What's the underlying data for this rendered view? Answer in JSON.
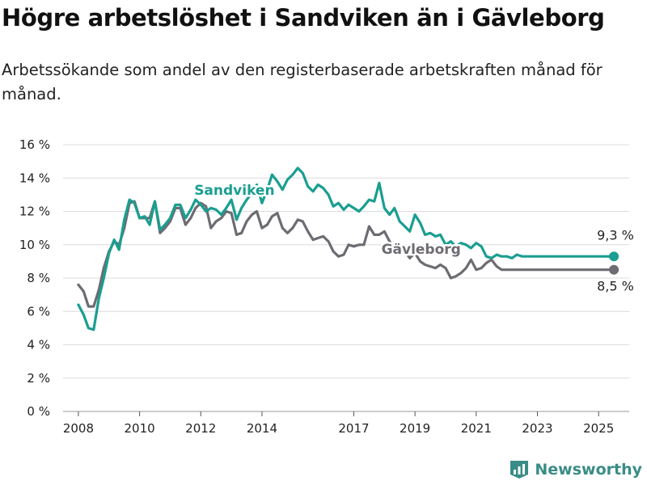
{
  "title": "Högre arbetslöshet i Sandviken än i Gävleborg",
  "subtitle": "Arbetssökande som andel av den registerbaserade arbetskraften månad för månad.",
  "brand": {
    "name": "Newsworthy",
    "icon": "newsworthy-logo-icon",
    "color": "#3a8c86"
  },
  "chart_data": {
    "type": "line",
    "x_unit": "decimal_year",
    "xlim": [
      2007.5,
      2026.0
    ],
    "ylim": [
      0,
      16
    ],
    "ytick_step": 2,
    "y_unit_suffix": " %",
    "x_tick_labels": [
      "2008",
      "2010",
      "2012",
      "2014",
      "2017",
      "2019",
      "2021",
      "2023",
      "2025"
    ],
    "x_tick_values": [
      2008,
      2010,
      2012,
      2014,
      2017,
      2019,
      2021,
      2023,
      2025
    ],
    "grid": true,
    "series": [
      {
        "name": "Sandviken",
        "color": "#1a9e91",
        "end_label": "9,3 %",
        "x": [
          2008.0,
          2008.17,
          2008.33,
          2008.5,
          2008.67,
          2008.83,
          2009.0,
          2009.17,
          2009.33,
          2009.5,
          2009.67,
          2009.83,
          2010.0,
          2010.17,
          2010.33,
          2010.5,
          2010.67,
          2010.83,
          2011.0,
          2011.17,
          2011.33,
          2011.5,
          2011.67,
          2011.83,
          2012.0,
          2012.17,
          2012.33,
          2012.5,
          2012.67,
          2012.83,
          2013.0,
          2013.17,
          2013.33,
          2013.5,
          2013.67,
          2013.83,
          2014.0,
          2014.17,
          2014.33,
          2014.5,
          2014.67,
          2014.83,
          2015.0,
          2015.17,
          2015.33,
          2015.5,
          2015.67,
          2015.83,
          2016.0,
          2016.17,
          2016.33,
          2016.5,
          2016.67,
          2016.83,
          2017.0,
          2017.17,
          2017.33,
          2017.5,
          2017.67,
          2017.83,
          2018.0,
          2018.17,
          2018.33,
          2018.5,
          2018.67,
          2018.83,
          2019.0,
          2019.17,
          2019.33,
          2019.5,
          2019.67,
          2019.83,
          2020.0,
          2020.17,
          2020.33,
          2020.5,
          2020.67,
          2020.83,
          2021.0,
          2021.17,
          2021.33,
          2021.5,
          2021.67,
          2021.83,
          2022.0,
          2022.17,
          2022.33,
          2022.5,
          2022.67,
          2022.83,
          2023.0,
          2023.17,
          2023.33,
          2023.5,
          2023.67,
          2023.83,
          2024.0,
          2024.17,
          2024.33,
          2024.5,
          2024.67,
          2024.83,
          2025.0,
          2025.17,
          2025.33,
          2025.5
        ],
        "values": [
          6.4,
          5.8,
          5.0,
          4.9,
          6.8,
          8.0,
          9.5,
          10.3,
          9.7,
          11.5,
          12.7,
          12.5,
          11.6,
          11.7,
          11.2,
          12.6,
          10.9,
          11.2,
          11.6,
          12.4,
          12.4,
          11.6,
          12.1,
          12.7,
          12.4,
          12.0,
          12.2,
          12.1,
          11.8,
          12.2,
          12.7,
          11.5,
          12.2,
          12.7,
          13.1,
          13.6,
          12.5,
          13.3,
          14.2,
          13.8,
          13.3,
          13.9,
          14.2,
          14.6,
          14.3,
          13.5,
          13.2,
          13.6,
          13.4,
          13.0,
          12.3,
          12.5,
          12.1,
          12.4,
          12.2,
          12.0,
          12.3,
          12.7,
          12.6,
          13.7,
          12.2,
          11.8,
          12.2,
          11.4,
          11.1,
          10.8,
          11.8,
          11.3,
          10.6,
          10.7,
          10.5,
          10.6,
          10.0,
          10.2,
          9.9,
          10.1,
          10.0,
          9.8,
          10.1,
          9.9,
          9.3,
          9.2,
          9.4,
          9.3,
          9.3,
          9.2,
          9.4,
          9.3,
          9.3,
          9.3,
          9.3,
          9.3,
          9.3,
          9.3,
          9.3,
          9.3,
          9.3,
          9.3,
          9.3,
          9.3,
          9.3,
          9.3,
          9.3,
          9.3,
          9.3,
          9.3
        ]
      },
      {
        "name": "Gävleborg",
        "color": "#6e6b72",
        "end_label": "8,5 %",
        "x": [
          2008.0,
          2008.17,
          2008.33,
          2008.5,
          2008.67,
          2008.83,
          2009.0,
          2009.17,
          2009.33,
          2009.5,
          2009.67,
          2009.83,
          2010.0,
          2010.17,
          2010.33,
          2010.5,
          2010.67,
          2010.83,
          2011.0,
          2011.17,
          2011.33,
          2011.5,
          2011.67,
          2011.83,
          2012.0,
          2012.17,
          2012.33,
          2012.5,
          2012.67,
          2012.83,
          2013.0,
          2013.17,
          2013.33,
          2013.5,
          2013.67,
          2013.83,
          2014.0,
          2014.17,
          2014.33,
          2014.5,
          2014.67,
          2014.83,
          2015.0,
          2015.17,
          2015.33,
          2015.5,
          2015.67,
          2015.83,
          2016.0,
          2016.17,
          2016.33,
          2016.5,
          2016.67,
          2016.83,
          2017.0,
          2017.17,
          2017.33,
          2017.5,
          2017.67,
          2017.83,
          2018.0,
          2018.17,
          2018.33,
          2018.5,
          2018.67,
          2018.83,
          2019.0,
          2019.17,
          2019.33,
          2019.5,
          2019.67,
          2019.83,
          2020.0,
          2020.17,
          2020.33,
          2020.5,
          2020.67,
          2020.83,
          2021.0,
          2021.17,
          2021.33,
          2021.5,
          2021.67,
          2021.83,
          2022.0,
          2022.17,
          2022.33,
          2022.5,
          2022.67,
          2022.83,
          2023.0,
          2023.17,
          2023.33,
          2023.5,
          2023.67,
          2023.83,
          2024.0,
          2024.17,
          2024.33,
          2024.5,
          2024.67,
          2024.83,
          2025.0,
          2025.17,
          2025.33,
          2025.5
        ],
        "values": [
          7.6,
          7.2,
          6.3,
          6.3,
          7.3,
          8.6,
          9.6,
          10.2,
          10.0,
          11.0,
          12.5,
          12.6,
          11.6,
          11.6,
          11.6,
          12.6,
          10.7,
          11.0,
          11.4,
          12.2,
          12.2,
          11.2,
          11.6,
          12.2,
          12.5,
          12.3,
          11.0,
          11.4,
          11.6,
          12.0,
          11.9,
          10.6,
          10.7,
          11.4,
          11.8,
          12.0,
          11.0,
          11.2,
          11.7,
          11.9,
          11.0,
          10.7,
          11.0,
          11.5,
          11.4,
          10.8,
          10.3,
          10.4,
          10.5,
          10.2,
          9.6,
          9.3,
          9.4,
          10.0,
          9.9,
          10.0,
          10.0,
          11.1,
          10.6,
          10.6,
          10.8,
          10.2,
          9.7,
          9.8,
          9.6,
          9.2,
          9.5,
          9.0,
          8.8,
          8.7,
          8.6,
          8.8,
          8.6,
          8.0,
          8.1,
          8.3,
          8.6,
          9.1,
          8.5,
          8.6,
          8.9,
          9.1,
          8.7,
          8.5,
          8.5,
          8.5,
          8.5,
          8.5,
          8.5,
          8.5,
          8.5,
          8.5,
          8.5,
          8.5,
          8.5,
          8.5,
          8.5,
          8.5,
          8.5,
          8.5,
          8.5,
          8.5,
          8.5,
          8.5,
          8.5,
          8.5
        ]
      }
    ]
  }
}
